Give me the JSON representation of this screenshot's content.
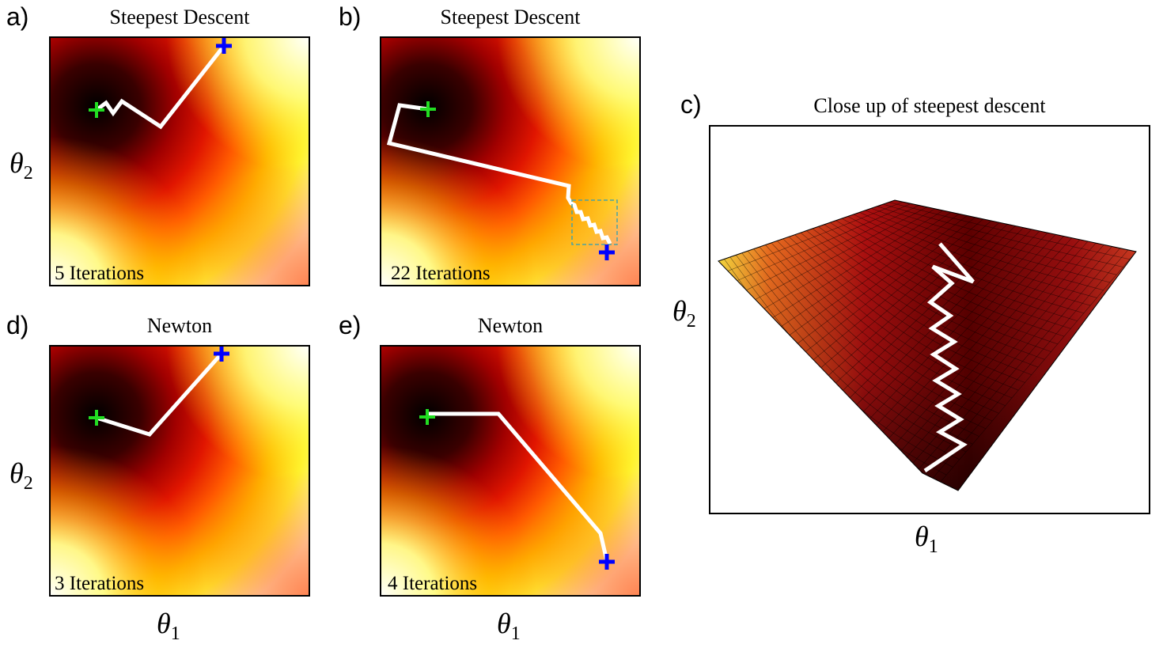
{
  "panels": {
    "a": {
      "letter": "a)",
      "title": "Steepest Descent",
      "iterations": "5 Iterations"
    },
    "b": {
      "letter": "b)",
      "title": "Steepest Descent",
      "iterations": "22 Iterations"
    },
    "c": {
      "letter": "c)",
      "title": "Close up of steepest descent"
    },
    "d": {
      "letter": "d)",
      "title": "Newton",
      "iterations": "3 Iterations"
    },
    "e": {
      "letter": "e)",
      "title": "Newton",
      "iterations": "4 Iterations"
    }
  },
  "axes": {
    "theta": "θ",
    "sub1": "1",
    "sub2": "2"
  },
  "colors": {
    "path": "#ffffff",
    "start_marker": "#0000ff",
    "end_marker": "#22dd22",
    "zoom_box": "#4aa3a3",
    "heatmap_low": "#000000",
    "heatmap_mid": "#ff2a00",
    "heatmap_high": "#ffffff"
  }
}
